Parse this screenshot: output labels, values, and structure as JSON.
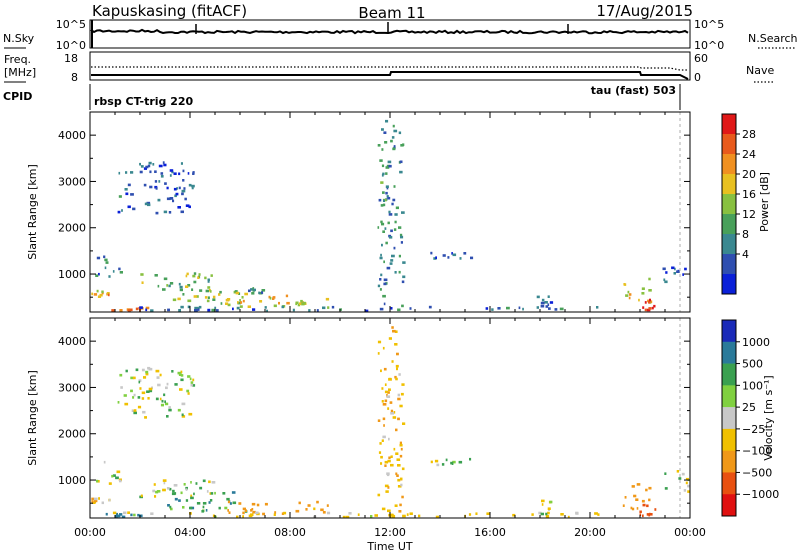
{
  "header": {
    "station": "Kapuskasing (fitACF)",
    "beam": "Beam 11",
    "date": "17/Aug/2015"
  },
  "status_panels": {
    "nsky_label": "N.Sky",
    "nsky_ticks": [
      "10^5",
      "10^0"
    ],
    "nsearch_label": "N.Search",
    "nsearch_ticks": [
      "10^5",
      "10^0"
    ],
    "freq_label": "Freq.",
    "freq_unit": "[MHz]",
    "freq_ticks": [
      "18",
      "8"
    ],
    "nave_label": "Nave",
    "nave_ticks": [
      "60",
      "0"
    ],
    "cpid_label": "CPID",
    "cpid_left": "rbsp CT-trig 220",
    "cpid_right": "tau (fast) 503"
  },
  "colors": {
    "axis": "#000000",
    "power_scale": [
      "#0a20d8",
      "#2f4fb0",
      "#3a8890",
      "#48a05a",
      "#88c040",
      "#e8c020",
      "#f09020",
      "#e85a1c",
      "#e01818"
    ],
    "velocity_scale": [
      "#1a2ab8",
      "#2a7a9a",
      "#3aa050",
      "#80d040",
      "#c8c8c8",
      "#f0c000",
      "#f09818",
      "#e85010",
      "#e01010"
    ]
  },
  "x_ticks": [
    "00:00",
    "04:00",
    "08:00",
    "12:00",
    "16:00",
    "20:00",
    "00:00"
  ],
  "x_title": "Time UT",
  "chart_data": [
    {
      "type": "heatmap",
      "name": "power",
      "ylabel": "Slant Range [km]",
      "colorbar_label": "Power [dB]",
      "xlim": [
        0,
        24
      ],
      "ylim": [
        180,
        4500
      ],
      "yticks": [
        1000,
        2000,
        3000,
        4000
      ],
      "colorbar_ticks": [
        "28",
        "24",
        "20",
        "16",
        "12",
        "8",
        "4"
      ],
      "clim": [
        0,
        32
      ],
      "regions": [
        {
          "t": [
            0.05,
            0.75
          ],
          "r": [
            480,
            650
          ],
          "v": 22
        },
        {
          "t": [
            1.1,
            4.1
          ],
          "r": [
            2300,
            3400
          ],
          "v": 6
        },
        {
          "t": [
            0.2,
            1.2
          ],
          "r": [
            900,
            1400
          ],
          "v": 8
        },
        {
          "t": [
            1.8,
            5.0
          ],
          "r": [
            600,
            1000
          ],
          "v": 14
        },
        {
          "t": [
            3.0,
            6.2
          ],
          "r": [
            280,
            720
          ],
          "v": 16
        },
        {
          "t": [
            5.2,
            9.6
          ],
          "r": [
            250,
            520
          ],
          "v": 20
        },
        {
          "t": [
            6.3,
            7.0
          ],
          "r": [
            560,
            700
          ],
          "v": 10
        },
        {
          "t": [
            0.6,
            2.3
          ],
          "r": [
            185,
            260
          ],
          "v": 26
        },
        {
          "t": [
            0.05,
            20.5
          ],
          "r": [
            185,
            280
          ],
          "v": 7
        },
        {
          "t": [
            13.5,
            15.2
          ],
          "r": [
            1300,
            1450
          ],
          "v": 6
        },
        {
          "t": [
            11.5,
            12.5
          ],
          "r": [
            200,
            4300
          ],
          "v": 10
        },
        {
          "t": [
            21.3,
            22.4
          ],
          "r": [
            350,
            900
          ],
          "v": 18
        },
        {
          "t": [
            21.9,
            22.6
          ],
          "r": [
            200,
            450
          ],
          "v": 28
        },
        {
          "t": [
            22.9,
            23.9
          ],
          "r": [
            700,
            1200
          ],
          "v": 6
        },
        {
          "t": [
            17.8,
            18.4
          ],
          "r": [
            250,
            550
          ],
          "v": 6
        }
      ]
    },
    {
      "type": "heatmap",
      "name": "velocity",
      "ylabel": "Slant Range [km]",
      "colorbar_label": "Velocity [m s⁻¹]",
      "xlim": [
        0,
        24
      ],
      "ylim": [
        180,
        4500
      ],
      "yticks": [
        1000,
        2000,
        3000,
        4000
      ],
      "colorbar_ticks": [
        "1000",
        "500",
        "100",
        "25",
        "−25",
        "−100",
        "−500",
        "−1000"
      ],
      "clim": [
        -1000,
        1000
      ],
      "regions": [
        {
          "t": [
            0.05,
            0.75
          ],
          "r": [
            480,
            650
          ],
          "v": -60
        },
        {
          "t": [
            1.1,
            4.1
          ],
          "r": [
            2300,
            3400
          ],
          "v": 0
        },
        {
          "t": [
            0.2,
            1.2
          ],
          "r": [
            900,
            1400
          ],
          "v": 0
        },
        {
          "t": [
            1.8,
            5.0
          ],
          "r": [
            600,
            1000
          ],
          "v": 5
        },
        {
          "t": [
            3.0,
            6.2
          ],
          "r": [
            280,
            720
          ],
          "v": 60
        },
        {
          "t": [
            5.2,
            9.6
          ],
          "r": [
            250,
            520
          ],
          "v": -150
        },
        {
          "t": [
            0.6,
            2.3
          ],
          "r": [
            185,
            260
          ],
          "v": 200
        },
        {
          "t": [
            0.05,
            20.5
          ],
          "r": [
            185,
            280
          ],
          "v": -40
        },
        {
          "t": [
            13.5,
            15.2
          ],
          "r": [
            1300,
            1450
          ],
          "v": 0
        },
        {
          "t": [
            11.5,
            12.5
          ],
          "r": [
            200,
            4300
          ],
          "v": -80
        },
        {
          "t": [
            21.3,
            22.4
          ],
          "r": [
            350,
            900
          ],
          "v": -300
        },
        {
          "t": [
            21.9,
            22.6
          ],
          "r": [
            200,
            450
          ],
          "v": -700
        },
        {
          "t": [
            22.9,
            23.9
          ],
          "r": [
            700,
            1200
          ],
          "v": 0
        },
        {
          "t": [
            17.8,
            18.4
          ],
          "r": [
            250,
            550
          ],
          "v": 0
        }
      ]
    }
  ]
}
